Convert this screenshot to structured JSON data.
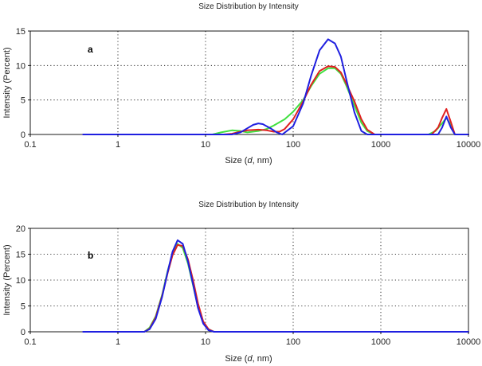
{
  "chart_data": [
    {
      "type": "line",
      "title": "Size Distribution by Intensity",
      "panel_label": "a",
      "xlabel_prefix": "Size (",
      "xlabel_var": "d",
      "xlabel_suffix": ", nm)",
      "ylabel": "Intensity (Percent)",
      "x_scale": "log",
      "xlim": [
        0.1,
        10000
      ],
      "ylim": [
        0,
        15
      ],
      "x_ticks": [
        0.1,
        1,
        10,
        100,
        1000,
        10000
      ],
      "x_tick_labels": [
        "0.1",
        "1",
        "10",
        "100",
        "1000",
        "10000"
      ],
      "y_ticks": [
        0,
        5,
        10,
        15
      ],
      "y_tick_labels": [
        "0",
        "5",
        "10",
        "15"
      ],
      "grid": true,
      "series": [
        {
          "color": "#40e040",
          "points": [
            [
              0.4,
              0
            ],
            [
              12,
              0
            ],
            [
              15,
              0.3
            ],
            [
              20,
              0.6
            ],
            [
              25,
              0.5
            ],
            [
              30,
              0.3
            ],
            [
              40,
              0.5
            ],
            [
              50,
              0.8
            ],
            [
              60,
              1.3
            ],
            [
              80,
              2.2
            ],
            [
              100,
              3.3
            ],
            [
              130,
              5
            ],
            [
              160,
              7
            ],
            [
              200,
              8.8
            ],
            [
              250,
              9.6
            ],
            [
              300,
              9.6
            ],
            [
              350,
              8.8
            ],
            [
              400,
              7.2
            ],
            [
              500,
              4.2
            ],
            [
              600,
              1.7
            ],
            [
              700,
              0.5
            ],
            [
              850,
              0
            ],
            [
              3500,
              0
            ],
            [
              4200,
              0.5
            ],
            [
              5000,
              1.6
            ],
            [
              5600,
              2.4
            ],
            [
              6300,
              1.4
            ],
            [
              7000,
              0
            ],
            [
              10000,
              0
            ]
          ]
        },
        {
          "color": "#e02020",
          "points": [
            [
              0.4,
              0
            ],
            [
              16,
              0
            ],
            [
              20,
              0.1
            ],
            [
              25,
              0.4
            ],
            [
              30,
              0.6
            ],
            [
              40,
              0.7
            ],
            [
              50,
              0.6
            ],
            [
              60,
              0.4
            ],
            [
              70,
              0.4
            ],
            [
              80,
              0.8
            ],
            [
              100,
              2.2
            ],
            [
              130,
              4.8
            ],
            [
              160,
              7.2
            ],
            [
              200,
              9.2
            ],
            [
              250,
              9.9
            ],
            [
              300,
              9.8
            ],
            [
              350,
              9
            ],
            [
              400,
              7.5
            ],
            [
              500,
              4.8
            ],
            [
              600,
              2.2
            ],
            [
              700,
              0.7
            ],
            [
              850,
              0
            ],
            [
              3800,
              0
            ],
            [
              4500,
              1
            ],
            [
              5000,
              2.4
            ],
            [
              5600,
              3.7
            ],
            [
              6300,
              1.8
            ],
            [
              7000,
              0
            ],
            [
              10000,
              0
            ]
          ]
        },
        {
          "color": "#1f1fe0",
          "points": [
            [
              0.4,
              0
            ],
            [
              20,
              0
            ],
            [
              25,
              0.3
            ],
            [
              30,
              0.9
            ],
            [
              35,
              1.4
            ],
            [
              40,
              1.6
            ],
            [
              45,
              1.5
            ],
            [
              55,
              0.9
            ],
            [
              65,
              0.3
            ],
            [
              75,
              0
            ],
            [
              100,
              1.2
            ],
            [
              130,
              4.5
            ],
            [
              160,
              8.5
            ],
            [
              200,
              12.2
            ],
            [
              250,
              13.8
            ],
            [
              300,
              13.2
            ],
            [
              350,
              11.3
            ],
            [
              400,
              8.2
            ],
            [
              500,
              3.2
            ],
            [
              600,
              0.5
            ],
            [
              700,
              0
            ],
            [
              4500,
              0
            ],
            [
              5000,
              1
            ],
            [
              5600,
              2.6
            ],
            [
              6300,
              1
            ],
            [
              7000,
              0
            ],
            [
              10000,
              0
            ]
          ]
        }
      ]
    },
    {
      "type": "line",
      "title": "Size Distribution by Intensity",
      "panel_label": "b",
      "xlabel_prefix": "Size (",
      "xlabel_var": "d",
      "xlabel_suffix": ", nm)",
      "ylabel": "Intensity (Percent)",
      "x_scale": "log",
      "xlim": [
        0.1,
        10000
      ],
      "ylim": [
        0,
        20
      ],
      "x_ticks": [
        0.1,
        1,
        10,
        100,
        1000,
        10000
      ],
      "x_tick_labels": [
        "0.1",
        "1",
        "10",
        "100",
        "1000",
        "10000"
      ],
      "y_ticks": [
        0,
        5,
        10,
        15,
        20
      ],
      "y_tick_labels": [
        "0",
        "5",
        "10",
        "15",
        "20"
      ],
      "grid": true,
      "series": [
        {
          "color": "#40e040",
          "points": [
            [
              0.4,
              0
            ],
            [
              2,
              0
            ],
            [
              2.3,
              0.8
            ],
            [
              2.7,
              3
            ],
            [
              3.2,
              7.2
            ],
            [
              3.7,
              11.8
            ],
            [
              4.2,
              15
            ],
            [
              4.8,
              17
            ],
            [
              5.5,
              16.2
            ],
            [
              6.3,
              13.2
            ],
            [
              7.2,
              9
            ],
            [
              8.2,
              4.8
            ],
            [
              9.4,
              1.8
            ],
            [
              10.8,
              0.5
            ],
            [
              12.5,
              0
            ],
            [
              10000,
              0
            ]
          ]
        },
        {
          "color": "#e02020",
          "points": [
            [
              0.4,
              0
            ],
            [
              2,
              0
            ],
            [
              2.3,
              0.6
            ],
            [
              2.7,
              2.8
            ],
            [
              3.2,
              7
            ],
            [
              3.7,
              11.4
            ],
            [
              4.2,
              14.8
            ],
            [
              4.8,
              16.8
            ],
            [
              5.5,
              16.6
            ],
            [
              6.3,
              14
            ],
            [
              7.2,
              10
            ],
            [
              8.2,
              5.5
            ],
            [
              9.4,
              2
            ],
            [
              10.8,
              0.5
            ],
            [
              12.5,
              0
            ],
            [
              10000,
              0
            ]
          ]
        },
        {
          "color": "#1f1fe0",
          "points": [
            [
              0.4,
              0
            ],
            [
              2,
              0
            ],
            [
              2.3,
              0.5
            ],
            [
              2.7,
              2.5
            ],
            [
              3.2,
              6.8
            ],
            [
              3.7,
              11.6
            ],
            [
              4.2,
              15.5
            ],
            [
              4.8,
              17.7
            ],
            [
              5.5,
              17
            ],
            [
              6.3,
              13.6
            ],
            [
              7.2,
              9.2
            ],
            [
              8.2,
              4.6
            ],
            [
              9.4,
              1.6
            ],
            [
              10.8,
              0.3
            ],
            [
              12.5,
              0
            ],
            [
              10000,
              0
            ]
          ]
        }
      ]
    }
  ]
}
